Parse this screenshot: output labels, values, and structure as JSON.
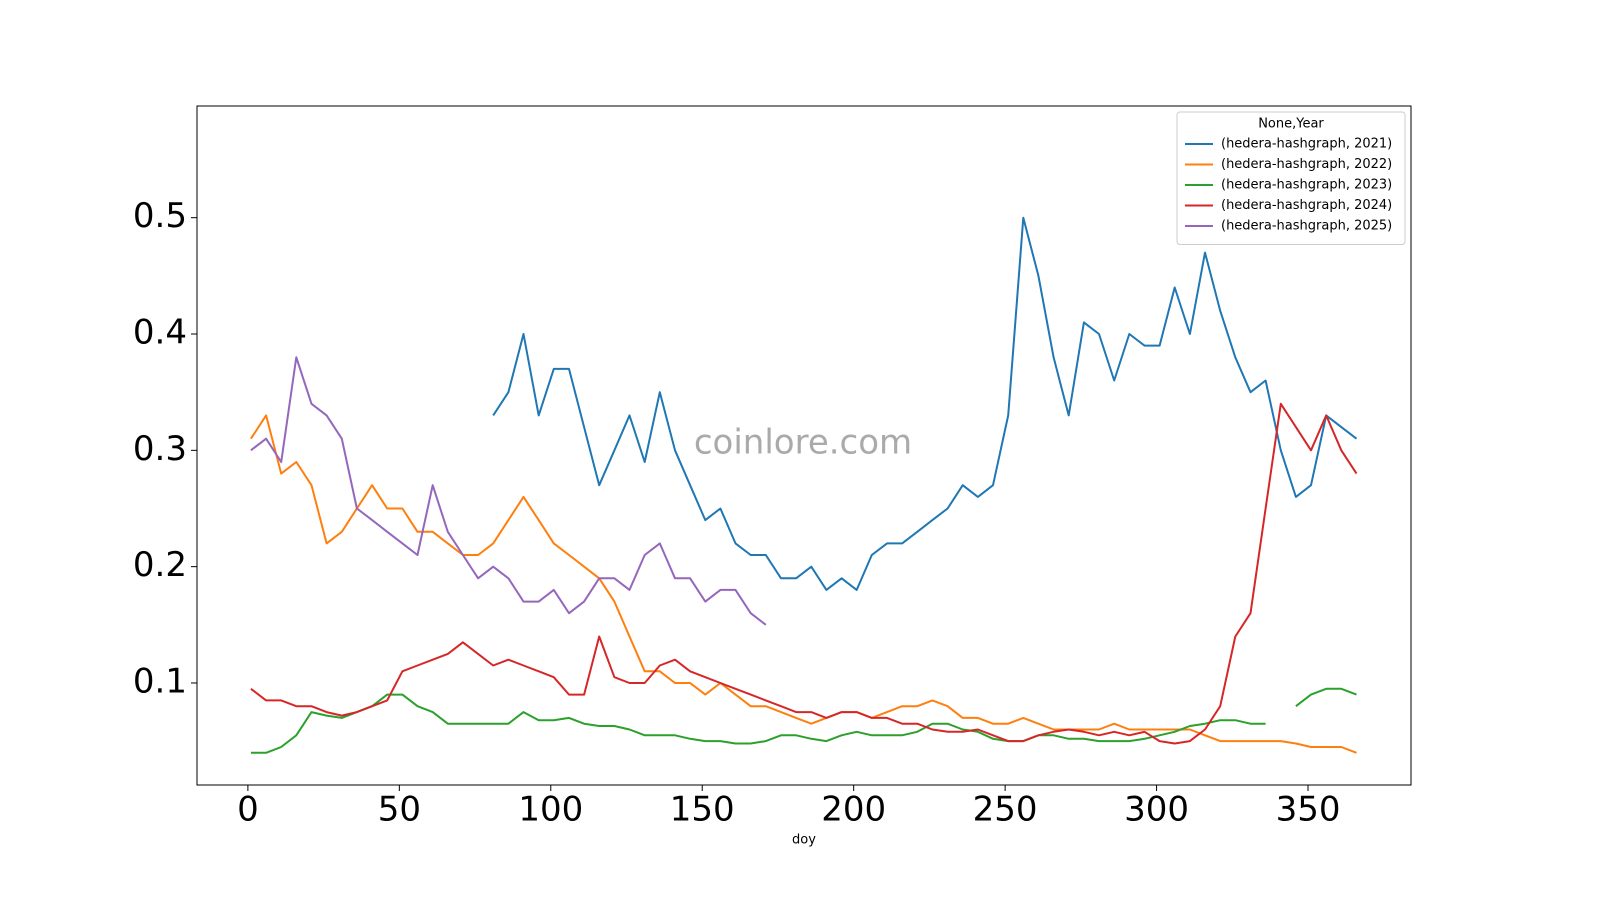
{
  "chart_data": {
    "type": "line",
    "x_label": "doy",
    "watermark": "coinlore.com",
    "legend_title": "None,Year",
    "legend_loc": "upper right",
    "xlim": [
      -16.8,
      384
    ],
    "ylim": [
      0.0123,
      0.596
    ],
    "xticks": [
      0,
      50,
      100,
      150,
      200,
      250,
      300,
      350
    ],
    "yticks": [
      0.1,
      0.2,
      0.3,
      0.4,
      0.5
    ],
    "x": [
      1,
      6,
      11,
      16,
      21,
      26,
      31,
      36,
      41,
      46,
      51,
      56,
      61,
      66,
      71,
      76,
      81,
      86,
      91,
      96,
      101,
      106,
      111,
      116,
      121,
      126,
      131,
      136,
      141,
      146,
      151,
      156,
      161,
      166,
      171,
      176,
      181,
      186,
      191,
      196,
      201,
      206,
      211,
      216,
      221,
      226,
      231,
      236,
      241,
      246,
      251,
      256,
      261,
      266,
      271,
      276,
      281,
      286,
      291,
      296,
      301,
      306,
      311,
      316,
      321,
      326,
      331,
      336,
      341,
      346,
      351,
      356,
      361,
      366
    ],
    "series": [
      {
        "name": "(hedera-hashgraph, 2021)",
        "color": "#1f77b4",
        "values": [
          null,
          null,
          null,
          null,
          null,
          null,
          null,
          null,
          null,
          null,
          null,
          null,
          null,
          null,
          null,
          null,
          0.33,
          0.35,
          0.4,
          0.33,
          0.37,
          0.37,
          0.32,
          0.27,
          0.3,
          0.33,
          0.29,
          0.35,
          0.3,
          0.27,
          0.24,
          0.25,
          0.22,
          0.21,
          0.21,
          0.19,
          0.19,
          0.2,
          0.18,
          0.19,
          0.18,
          0.21,
          0.22,
          0.22,
          0.23,
          0.24,
          0.25,
          0.27,
          0.26,
          0.27,
          0.33,
          0.5,
          0.45,
          0.38,
          0.33,
          0.41,
          0.4,
          0.36,
          0.4,
          0.39,
          0.39,
          0.44,
          0.4,
          0.47,
          0.42,
          0.38,
          0.35,
          0.36,
          0.3,
          0.26,
          0.27,
          0.33,
          0.32,
          0.31
        ]
      },
      {
        "name": "(hedera-hashgraph, 2022)",
        "color": "#ff7f0e",
        "values": [
          0.31,
          0.33,
          0.28,
          0.29,
          0.27,
          0.22,
          0.23,
          0.25,
          0.27,
          0.25,
          0.25,
          0.23,
          0.23,
          0.22,
          0.21,
          0.21,
          0.22,
          0.24,
          0.26,
          0.24,
          0.22,
          0.21,
          0.2,
          0.19,
          0.17,
          0.14,
          0.11,
          0.11,
          0.1,
          0.1,
          0.09,
          0.1,
          0.09,
          0.08,
          0.08,
          0.075,
          0.07,
          0.065,
          0.07,
          0.075,
          0.075,
          0.07,
          0.075,
          0.08,
          0.08,
          0.085,
          0.08,
          0.07,
          0.07,
          0.065,
          0.065,
          0.07,
          0.065,
          0.06,
          0.06,
          0.06,
          0.06,
          0.065,
          0.06,
          0.06,
          0.06,
          0.06,
          0.06,
          0.055,
          0.05,
          0.05,
          0.05,
          0.05,
          0.05,
          0.048,
          0.045,
          0.045,
          0.045,
          0.04
        ]
      },
      {
        "name": "(hedera-hashgraph, 2023)",
        "color": "#2ca02c",
        "values": [
          0.04,
          0.04,
          0.045,
          0.055,
          0.075,
          0.072,
          0.07,
          0.075,
          0.08,
          0.09,
          0.09,
          0.08,
          0.075,
          0.065,
          0.065,
          0.065,
          0.065,
          0.065,
          0.075,
          0.068,
          0.068,
          0.07,
          0.065,
          0.063,
          0.063,
          0.06,
          0.055,
          0.055,
          0.055,
          0.052,
          0.05,
          0.05,
          0.048,
          0.048,
          0.05,
          0.055,
          0.055,
          0.052,
          0.05,
          0.055,
          0.058,
          0.055,
          0.055,
          0.055,
          0.058,
          0.065,
          0.065,
          0.06,
          0.058,
          0.052,
          0.05,
          0.05,
          0.055,
          0.055,
          0.052,
          0.052,
          0.05,
          0.05,
          0.05,
          0.052,
          0.055,
          0.058,
          0.063,
          0.065,
          0.068,
          0.068,
          0.065,
          0.065,
          null,
          0.08,
          0.09,
          0.095,
          0.095,
          0.09
        ]
      },
      {
        "name": "(hedera-hashgraph, 2024)",
        "color": "#d62728",
        "values": [
          0.095,
          0.085,
          0.085,
          0.08,
          0.08,
          0.075,
          0.072,
          0.075,
          0.08,
          0.085,
          0.11,
          0.115,
          0.12,
          0.125,
          0.135,
          0.125,
          0.115,
          0.12,
          0.115,
          0.11,
          0.105,
          0.09,
          0.09,
          0.14,
          0.105,
          0.1,
          0.1,
          0.115,
          0.12,
          0.11,
          0.105,
          0.1,
          0.095,
          0.09,
          0.085,
          0.08,
          0.075,
          0.075,
          0.07,
          0.075,
          0.075,
          0.07,
          0.07,
          0.065,
          0.065,
          0.06,
          0.058,
          0.058,
          0.06,
          0.055,
          0.05,
          0.05,
          0.055,
          0.058,
          0.06,
          0.058,
          0.055,
          0.058,
          0.055,
          0.058,
          0.05,
          0.048,
          0.05,
          0.06,
          0.08,
          0.14,
          0.16,
          0.25,
          0.34,
          0.32,
          0.3,
          0.33,
          0.3,
          0.28
        ]
      },
      {
        "name": "(hedera-hashgraph, 2025)",
        "color": "#9467bd",
        "values": [
          0.3,
          0.31,
          0.29,
          0.38,
          0.34,
          0.33,
          0.31,
          0.25,
          0.24,
          0.23,
          0.22,
          0.21,
          0.27,
          0.23,
          0.21,
          0.19,
          0.2,
          0.19,
          0.17,
          0.17,
          0.18,
          0.16,
          0.17,
          0.19,
          0.19,
          0.18,
          0.21,
          0.22,
          0.19,
          0.19,
          0.17,
          0.18,
          0.18,
          0.16,
          0.15,
          null,
          null,
          null,
          null,
          null,
          null,
          null,
          null,
          null,
          null,
          null,
          null,
          null,
          null,
          null,
          null,
          null,
          null,
          null,
          null,
          null,
          null,
          null,
          null,
          null,
          null,
          null,
          null,
          null,
          null,
          null,
          null,
          null,
          null,
          null,
          null,
          null,
          null,
          null
        ]
      }
    ]
  }
}
